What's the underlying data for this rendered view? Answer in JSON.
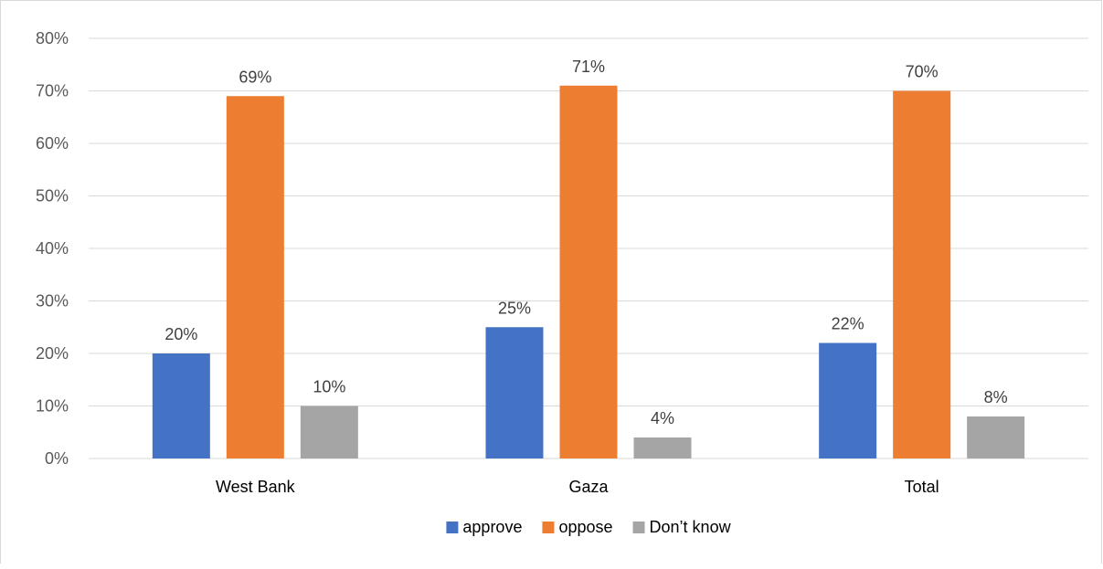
{
  "chart_data": {
    "type": "bar",
    "categories": [
      "West Bank",
      "Gaza",
      "Total"
    ],
    "series": [
      {
        "name": "approve",
        "values": [
          20,
          25,
          22
        ],
        "labels": [
          "20%",
          "25%",
          "22%"
        ],
        "color": "#4472c4"
      },
      {
        "name": "oppose",
        "values": [
          69,
          71,
          70
        ],
        "labels": [
          "69%",
          "71%",
          "70%"
        ],
        "color": "#ed7d31"
      },
      {
        "name": "Don’t know",
        "values": [
          10,
          4,
          8
        ],
        "labels": [
          "10%",
          "4%",
          "8%"
        ],
        "color": "#a5a5a5"
      }
    ],
    "yticks": [
      "0%",
      "10%",
      "20%",
      "30%",
      "40%",
      "50%",
      "60%",
      "70%",
      "80%"
    ],
    "ylim": [
      0,
      80
    ],
    "grid": true,
    "legend_position": "bottom"
  }
}
